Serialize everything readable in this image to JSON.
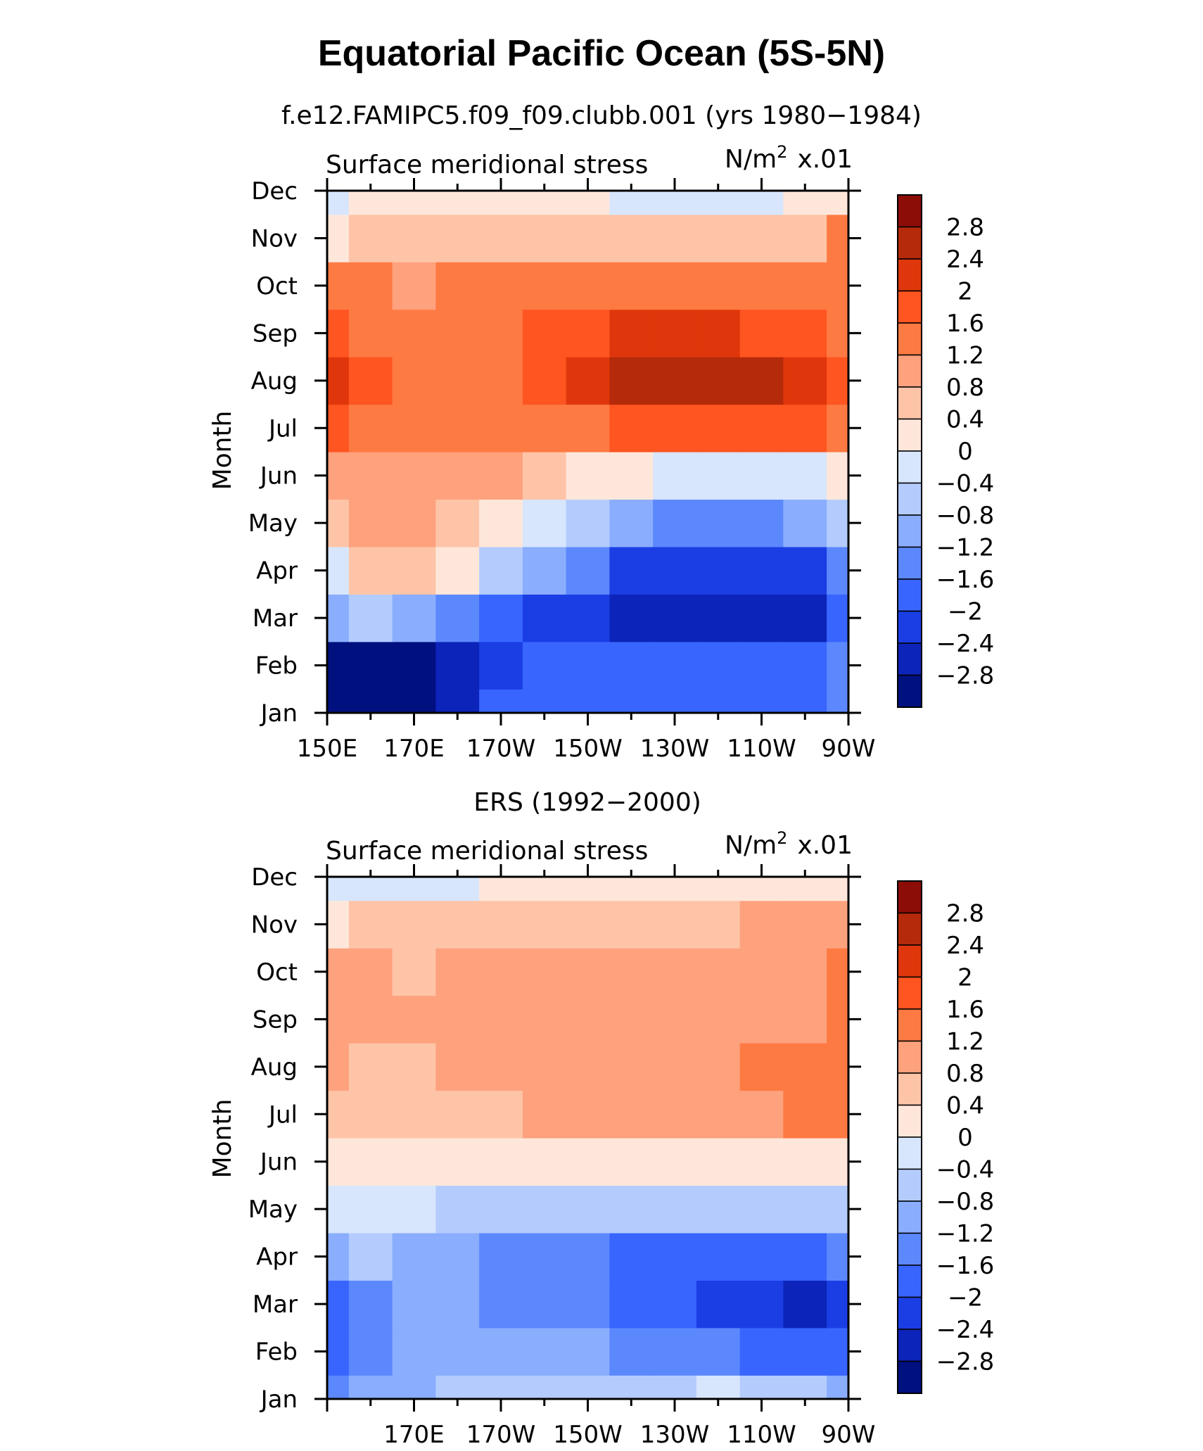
{
  "figure": {
    "title": "Equatorial Pacific Ocean (5S-5N)"
  },
  "chart_data": [
    {
      "type": "heatmap",
      "subtitle": "f.e12.FAMIPC5.f09_f09.clubb.001 (yrs 1980−1984)",
      "left_label": "Surface meridional stress",
      "units_base": "N/m",
      "units_sup": "2",
      "units_scale": "x.01",
      "ylabel": "Month",
      "xlabel": "",
      "x_tick_labels": [
        "150E",
        "170E",
        "170W",
        "150W",
        "130W",
        "110W",
        "90W"
      ],
      "x_range": [
        150,
        270
      ],
      "y_tick_labels": [
        "Jan",
        "Feb",
        "Mar",
        "Apr",
        "May",
        "Jun",
        "Jul",
        "Aug",
        "Sep",
        "Oct",
        "Nov",
        "Dec"
      ],
      "lon": [
        150,
        160,
        170,
        180,
        190,
        200,
        210,
        220,
        230,
        240,
        250,
        260,
        270
      ],
      "values": [
        [
          -3.0,
          -3.0,
          -3.0,
          -2.6,
          -2.0,
          -1.9,
          -1.8,
          -1.8,
          -1.9,
          -1.9,
          -1.8,
          -1.8,
          -1.4
        ],
        [
          -3.0,
          -3.2,
          -3.2,
          -2.8,
          -2.3,
          -2.0,
          -1.9,
          -1.9,
          -2.0,
          -2.0,
          -2.0,
          -2.0,
          -1.6
        ],
        [
          -1.2,
          -0.8,
          -0.9,
          -1.5,
          -2.0,
          -2.3,
          -2.4,
          -2.7,
          -2.8,
          -2.8,
          -2.8,
          -2.6,
          -1.8
        ],
        [
          -0.2,
          0.4,
          0.6,
          0.0,
          -0.6,
          -1.1,
          -1.6,
          -2.1,
          -2.3,
          -2.2,
          -2.2,
          -2.2,
          -1.6
        ],
        [
          0.6,
          0.8,
          0.8,
          0.6,
          0.2,
          -0.3,
          -0.7,
          -1.0,
          -1.3,
          -1.3,
          -1.3,
          -1.2,
          -0.8
        ],
        [
          1.0,
          1.0,
          0.9,
          0.9,
          0.9,
          0.4,
          0.2,
          0.0,
          -0.2,
          -0.4,
          -0.4,
          -0.3,
          0.2
        ],
        [
          1.8,
          1.4,
          1.3,
          1.3,
          1.3,
          1.4,
          1.5,
          1.7,
          1.8,
          1.8,
          1.8,
          1.6,
          1.2
        ],
        [
          2.0,
          1.6,
          1.5,
          1.5,
          1.5,
          1.7,
          2.0,
          2.4,
          2.6,
          2.6,
          2.4,
          2.0,
          1.6
        ],
        [
          1.6,
          1.4,
          1.4,
          1.3,
          1.4,
          1.6,
          1.8,
          2.0,
          2.1,
          2.0,
          1.8,
          1.6,
          1.3
        ],
        [
          1.2,
          1.2,
          1.1,
          1.2,
          1.2,
          1.4,
          1.4,
          1.4,
          1.4,
          1.3,
          1.2,
          1.2,
          1.3
        ],
        [
          0.3,
          0.6,
          0.6,
          0.6,
          0.7,
          0.7,
          0.7,
          0.6,
          0.5,
          0.4,
          0.4,
          0.5,
          1.2
        ],
        [
          -0.2,
          0.3,
          0.3,
          0.3,
          0.1,
          0.1,
          0.1,
          -0.1,
          -0.3,
          -0.3,
          -0.1,
          0.1,
          0.3
        ]
      ]
    },
    {
      "type": "heatmap",
      "subtitle": "ERS (1992−2000)",
      "left_label": "Surface meridional stress",
      "units_base": "N/m",
      "units_sup": "2",
      "units_scale": "x.01",
      "ylabel": "Month",
      "xlabel": "",
      "x_tick_labels": [
        "170E",
        "170W",
        "150W",
        "130W",
        "110W",
        "90W"
      ],
      "x_range": [
        150,
        270
      ],
      "y_tick_labels": [
        "Jan",
        "Feb",
        "Mar",
        "Apr",
        "May",
        "Jun",
        "Jul",
        "Aug",
        "Sep",
        "Oct",
        "Nov",
        "Dec"
      ],
      "lon": [
        150,
        160,
        170,
        180,
        190,
        200,
        210,
        220,
        230,
        240,
        250,
        260,
        270
      ],
      "values": [
        [
          -1.6,
          -1.2,
          -1.0,
          -0.8,
          -0.6,
          -0.6,
          -0.5,
          -0.5,
          -0.5,
          -0.4,
          -0.5,
          -0.7,
          -1.2
        ],
        [
          -1.8,
          -1.4,
          -1.2,
          -1.1,
          -1.2,
          -1.1,
          -1.2,
          -1.4,
          -1.5,
          -1.6,
          -1.7,
          -2.0,
          -2.0
        ],
        [
          -1.8,
          -1.6,
          -1.2,
          -1.2,
          -1.4,
          -1.5,
          -1.6,
          -1.8,
          -2.0,
          -2.2,
          -2.4,
          -2.6,
          -2.4
        ],
        [
          -0.9,
          -0.8,
          -0.9,
          -1.2,
          -1.4,
          -1.5,
          -1.6,
          -1.8,
          -1.8,
          -1.8,
          -1.7,
          -1.7,
          -1.6
        ],
        [
          -0.3,
          -0.2,
          -0.3,
          -0.5,
          -0.6,
          -0.6,
          -0.6,
          -0.8,
          -0.8,
          -0.8,
          -0.7,
          -0.8,
          -0.8
        ],
        [
          0.2,
          0.2,
          0.2,
          0.1,
          0.2,
          0.3,
          0.3,
          0.3,
          0.2,
          0.1,
          0.0,
          0.1,
          0.0
        ],
        [
          0.7,
          0.6,
          0.6,
          0.6,
          0.7,
          0.8,
          0.8,
          0.9,
          0.9,
          0.8,
          1.0,
          1.4,
          1.3
        ],
        [
          0.9,
          0.7,
          0.7,
          0.8,
          0.9,
          1.0,
          1.0,
          1.0,
          1.0,
          0.9,
          1.2,
          1.4,
          1.4
        ],
        [
          1.1,
          0.9,
          0.8,
          0.8,
          0.9,
          1.0,
          0.9,
          0.9,
          1.0,
          0.9,
          0.9,
          1.1,
          1.4
        ],
        [
          0.9,
          0.8,
          0.7,
          0.8,
          0.8,
          1.0,
          0.9,
          0.9,
          0.9,
          0.8,
          0.8,
          0.9,
          1.3
        ],
        [
          0.3,
          0.5,
          0.6,
          0.4,
          0.5,
          0.6,
          0.6,
          0.7,
          0.6,
          0.6,
          0.8,
          0.9,
          0.8
        ],
        [
          -0.3,
          -0.3,
          -0.2,
          -0.1,
          0.0,
          0.1,
          0.0,
          0.1,
          0.2,
          0.2,
          0.3,
          0.2,
          0.1
        ]
      ]
    }
  ],
  "colorbar": {
    "levels": [
      "2.8",
      "2.4",
      "2",
      "1.6",
      "1.2",
      "0.8",
      "0.4",
      "0",
      "−0.4",
      "−0.8",
      "−1.2",
      "−1.6",
      "−2",
      "−2.4",
      "−2.8"
    ],
    "level_values": [
      2.8,
      2.4,
      2.0,
      1.6,
      1.2,
      0.8,
      0.4,
      0.0,
      -0.4,
      -0.8,
      -1.2,
      -1.6,
      -2.0,
      -2.4,
      -2.8
    ],
    "colors": [
      "#8c0d08",
      "#b52a0a",
      "#df370b",
      "#fe5521",
      "#fe7a43",
      "#fea17d",
      "#fec4a8",
      "#fee7da",
      "#d7e6fd",
      "#b4ccfd",
      "#8aadfd",
      "#5c88fe",
      "#3865fe",
      "#1a3ee4",
      "#0c24b9",
      "#00107f"
    ]
  }
}
